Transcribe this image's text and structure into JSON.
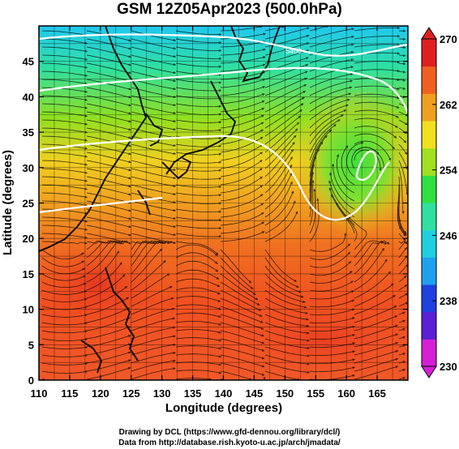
{
  "title": "GSM 12Z05Apr2023 (500.0hPa)",
  "axes": {
    "xlabel": "Longitude (degrees)",
    "ylabel": "Latitude  (degrees)",
    "xticks": [
      110,
      115,
      120,
      125,
      130,
      135,
      140,
      145,
      150,
      155,
      160,
      165
    ],
    "yticks": [
      0,
      5,
      10,
      15,
      20,
      25,
      30,
      35,
      40,
      45
    ],
    "xlim": [
      110,
      170
    ],
    "ylim": [
      0,
      50
    ]
  },
  "colorbar": {
    "ticks": [
      230,
      238,
      246,
      254,
      262,
      270
    ],
    "range": [
      230,
      270
    ],
    "colors": [
      "#d41fd4",
      "#5a1fd4",
      "#2040e0",
      "#20a0f0",
      "#20d0e0",
      "#30e0a0",
      "#30e040",
      "#a0e020",
      "#f0e020",
      "#f0a020",
      "#f06020",
      "#e02020"
    ]
  },
  "contours": {
    "label": "5400",
    "color": "#ffffff"
  },
  "credits": {
    "line1": "Drawing by DCL (https://www.gfd-dennou.org/library/dcl/)",
    "line2": "Data from http://database.rish.kyoto-u.ac.jp/arch/jmadata/"
  }
}
